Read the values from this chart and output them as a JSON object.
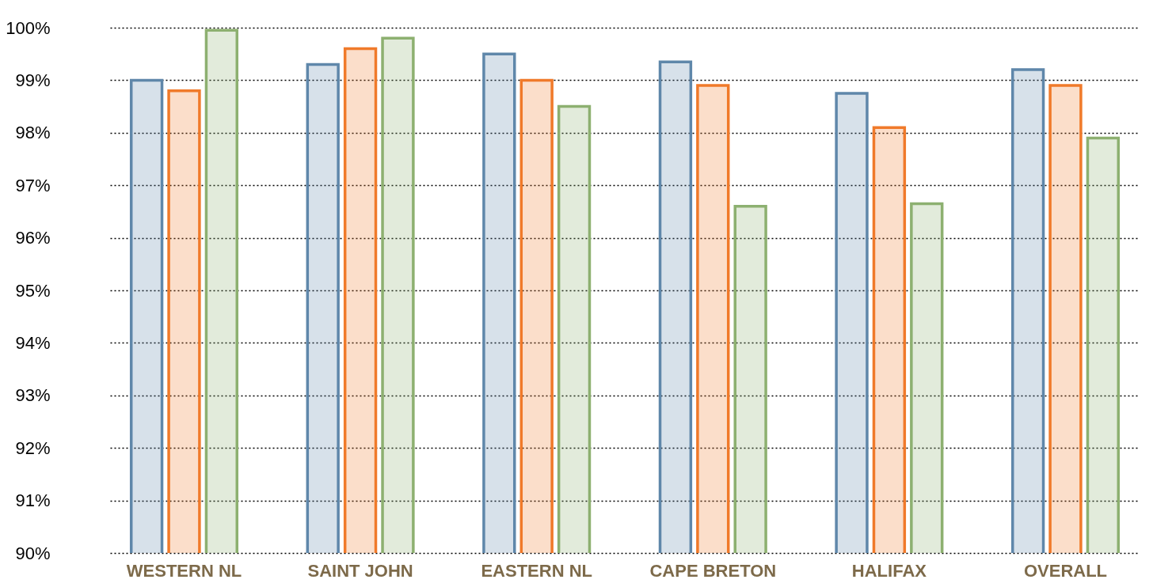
{
  "chart_data": {
    "type": "bar",
    "categories": [
      "WESTERN NL",
      "SAINT JOHN",
      "EASTERN NL",
      "CAPE BRETON",
      "HALIFAX",
      "OVERALL"
    ],
    "series": [
      {
        "color": "#5f87aa",
        "values": [
          99.0,
          99.3,
          99.5,
          99.35,
          98.75,
          99.2
        ]
      },
      {
        "color": "#f07a2a",
        "values": [
          98.8,
          99.6,
          99.0,
          98.9,
          98.1,
          98.9
        ]
      },
      {
        "color": "#8db070",
        "values": [
          99.95,
          99.8,
          98.5,
          96.6,
          96.65,
          97.9
        ]
      }
    ],
    "ylim": [
      90,
      100
    ],
    "yticks": [
      {
        "value": 90,
        "label": "90%"
      },
      {
        "value": 91,
        "label": "91%"
      },
      {
        "value": 92,
        "label": "92%"
      },
      {
        "value": 93,
        "label": "93%"
      },
      {
        "value": 94,
        "label": "94%"
      },
      {
        "value": 95,
        "label": "95%"
      },
      {
        "value": 96,
        "label": "96%"
      },
      {
        "value": 97,
        "label": "97%"
      },
      {
        "value": 98,
        "label": "98%"
      },
      {
        "value": 99,
        "label": "99%"
      },
      {
        "value": 100,
        "label": "100%"
      }
    ],
    "grid": "y"
  }
}
